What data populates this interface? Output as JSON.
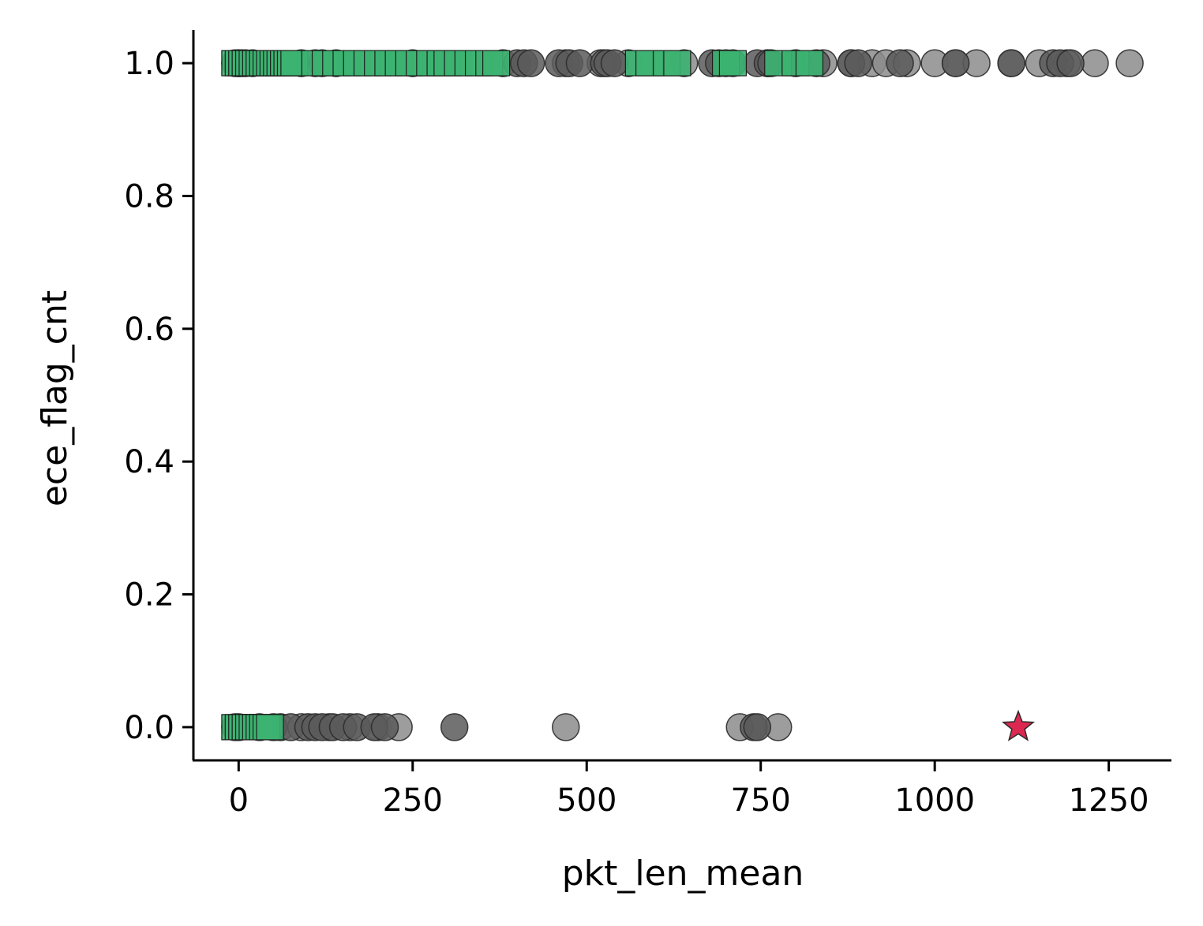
{
  "chart_data": {
    "type": "scatter",
    "title": "",
    "xlabel": "pkt_len_mean",
    "ylabel": "ece_flag_cnt",
    "xlim": [
      -65,
      1340
    ],
    "ylim": [
      -0.05,
      1.05
    ],
    "xticks": [
      0,
      250,
      500,
      750,
      1000,
      1250
    ],
    "xtick_labels": [
      "0",
      "250",
      "500",
      "750",
      "1000",
      "1250"
    ],
    "yticks": [
      0.0,
      0.2,
      0.4,
      0.6,
      0.8,
      1.0
    ],
    "ytick_labels": [
      "0.0",
      "0.2",
      "0.4",
      "0.6",
      "0.8",
      "1.0"
    ],
    "grid": false,
    "legend": "none",
    "colors": {
      "circle_light": "#8c8c8c",
      "circle_dark": "#5a5a5a",
      "circle_edge": "#2b2b2b",
      "square": "#3cb371",
      "square_edge": "#1e1e1e",
      "star": "#dc2850",
      "axis": "#000000"
    },
    "series": [
      {
        "marker": "circle",
        "shade": "light",
        "y": 1,
        "x": [
          0,
          20,
          90,
          110,
          250,
          380,
          470,
          520,
          560,
          640,
          700,
          760,
          840,
          880,
          910,
          930,
          960,
          1000,
          1030,
          1060,
          1110,
          1150,
          1190,
          1230,
          1280
        ]
      },
      {
        "marker": "circle",
        "shade": "dark",
        "y": 1,
        "x": [
          -5,
          0,
          5,
          10,
          120,
          140,
          400,
          410,
          420,
          460,
          475,
          490,
          525,
          530,
          540,
          680,
          690,
          710,
          745,
          760,
          765,
          800,
          830,
          880,
          890,
          950,
          1030,
          1110,
          1170,
          1180,
          1195
        ]
      },
      {
        "marker": "square",
        "y": 1,
        "x": [
          -5,
          0,
          5,
          10,
          15,
          20,
          25,
          30,
          35,
          40,
          45,
          50,
          55,
          60,
          65,
          70,
          75,
          80,
          110,
          125,
          140,
          155,
          170,
          185,
          200,
          215,
          230,
          245,
          260,
          275,
          290,
          300,
          315,
          330,
          345,
          360,
          370,
          575,
          590,
          615,
          630,
          700,
          710,
          775,
          800,
          820
        ]
      },
      {
        "marker": "circle",
        "shade": "light",
        "y": 0,
        "x": [
          30,
          60,
          90,
          130,
          160,
          200,
          230,
          470,
          720,
          775
        ]
      },
      {
        "marker": "circle",
        "shade": "dark",
        "y": 0,
        "x": [
          -5,
          0,
          50,
          75,
          100,
          110,
          120,
          135,
          150,
          170,
          195,
          210,
          310,
          740,
          745
        ]
      },
      {
        "marker": "square",
        "y": 0,
        "x": [
          -5,
          0,
          5,
          10,
          15,
          20,
          25,
          30,
          35,
          40,
          45
        ]
      },
      {
        "marker": "star",
        "y": 0,
        "x": [
          1120
        ]
      }
    ]
  }
}
